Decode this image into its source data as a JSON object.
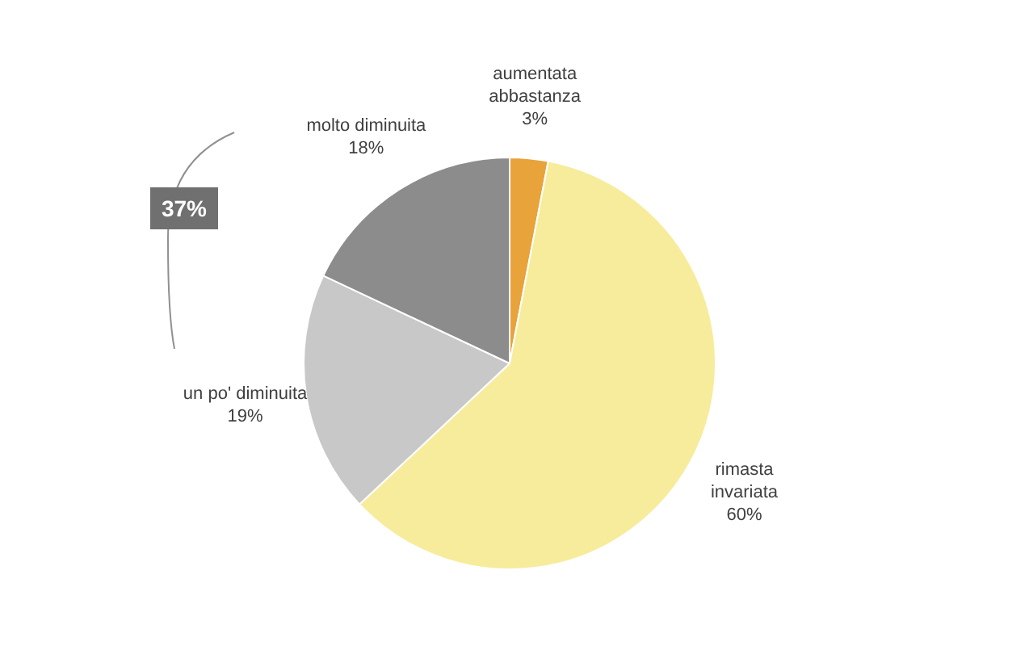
{
  "chart_data": {
    "type": "pie",
    "categories": [
      "aumentata abbastanza",
      "rimasta invariata",
      "un po' diminuita",
      "molto diminuita"
    ],
    "values": [
      3,
      60,
      19,
      18
    ],
    "colors": [
      "#e8a33a",
      "#f7ec9c",
      "#c8c8c8",
      "#8c8c8c"
    ],
    "value_labels": [
      "3%",
      "60%",
      "19%",
      "18%"
    ],
    "annotations": [
      "37%"
    ],
    "legend": false
  }
}
